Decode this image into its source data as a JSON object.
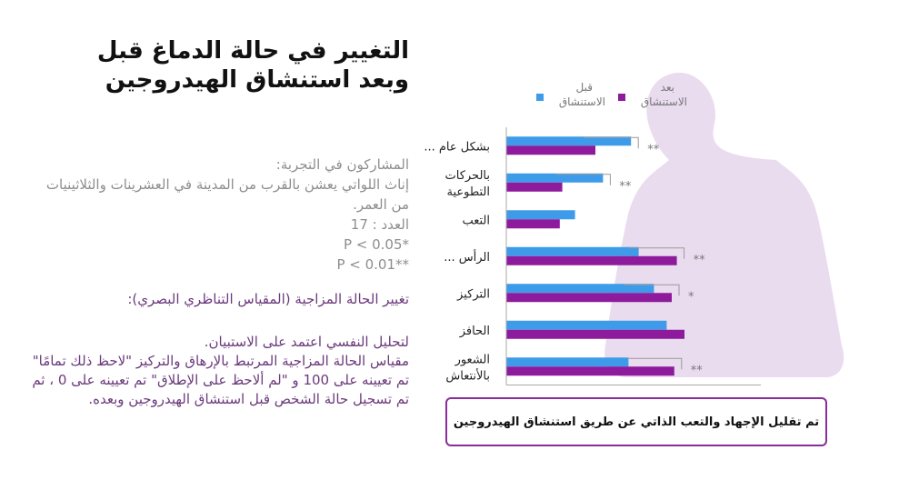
{
  "title_line1": "التغيير في حالة الدماغ قبل",
  "title_line2": "وبعد استنشاق الهيدروجين",
  "info": {
    "participants_label": "المشاركون في التجربة:",
    "participants_desc": "إناث اللواتي يعشن بالقرب من المدينة في العشرينات والثلاثينيات من العمر.",
    "count": "العدد : 17",
    "p1": "*P < 0.05",
    "p2": "**P < 0.01"
  },
  "mood": {
    "heading": "تغيير الحالة المزاجية (المقياس التناظري البصري):",
    "desc_line1": "لتحليل النفسي اعتمد على الاستبيان.",
    "desc_line2": "مقياس الحالة المزاجية المرتبط بالإرهاق والتركيز \"لاحظ ذلك تمامًا\" تم تعيينه على 100 و \"لم ألاحظ على الإطلاق\" تم تعيينه على 0 ، ثم تم تسجيل حالة الشخص قبل استنشاق الهيدروجين وبعده."
  },
  "conclusion": "تم تقليل الإجهاد والتعب الذاتي عن طريق استنشاق الهيدروجين",
  "colors": {
    "before": "#3d9be9",
    "after": "#8e1a9c",
    "silhouette": "#eadcef",
    "axis": "#aaaaaa",
    "sig": "#999999"
  },
  "chart_data": {
    "type": "bar",
    "orientation": "horizontal",
    "categories": [
      {
        "line1": "... بشكل عام",
        "line2": ""
      },
      {
        "line1": "بالحركات",
        "line2": "التطوعية"
      },
      {
        "line1": "التعب",
        "line2": ""
      },
      {
        "line1": "... الرأس",
        "line2": ""
      },
      {
        "line1": "التركيز",
        "line2": ""
      },
      {
        "line1": "الحافز",
        "line2": ""
      },
      {
        "line1": "الشعور",
        "line2": "بالأنتعاش"
      }
    ],
    "series": [
      {
        "name_line1": "قبل",
        "name_line2": "الاستنشاق",
        "values": [
          49,
          38,
          27,
          52,
          58,
          63,
          48
        ]
      },
      {
        "name_line1": "بعد",
        "name_line2": "الاستنشاق",
        "values": [
          35,
          22,
          21,
          67,
          65,
          70,
          66
        ]
      }
    ],
    "significance": [
      "**",
      "**",
      "",
      "**",
      "*",
      "",
      "**"
    ],
    "xlim": [
      0,
      100
    ]
  }
}
